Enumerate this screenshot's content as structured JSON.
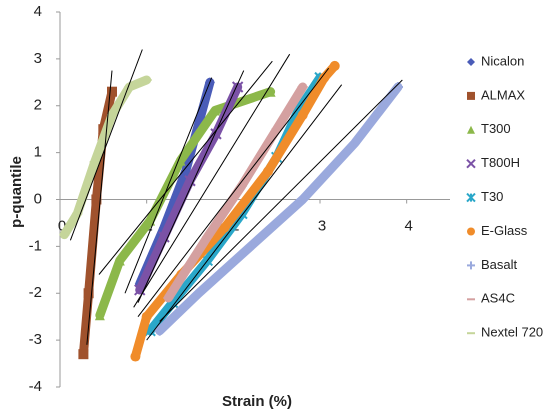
{
  "chart_data": {
    "type": "line",
    "x_label": "Strain (%)",
    "y_label": "p-quantile",
    "xlim": [
      0,
      4.5
    ],
    "ylim": [
      -4,
      4
    ],
    "xticks": [
      0,
      1,
      2,
      3,
      4
    ],
    "yticks": [
      -4,
      -3,
      -2,
      -1,
      0,
      1,
      2,
      3,
      4
    ],
    "series": [
      {
        "name": "Nicalon",
        "color": "#4a5cb8",
        "marker": "diamond",
        "x": [
          0.92,
          1.2,
          1.45,
          1.73
        ],
        "values": [
          -1.8,
          -0.6,
          0.6,
          2.5
        ]
      },
      {
        "name": "ALMAX",
        "color": "#a0522d",
        "marker": "square",
        "x": [
          0.27,
          0.33,
          0.42,
          0.5,
          0.6
        ],
        "values": [
          -3.3,
          -2,
          0,
          1.5,
          2.3
        ]
      },
      {
        "name": "T300",
        "color": "#8cb84a",
        "marker": "triangle",
        "x": [
          0.46,
          0.69,
          1.04,
          1.39,
          1.79,
          2.43
        ],
        "values": [
          -2.47,
          -1.3,
          -0.45,
          0.83,
          1.9,
          2.3
        ]
      },
      {
        "name": "T800H",
        "color": "#7b52a6",
        "marker": "x",
        "x": [
          0.92,
          1.2,
          1.5,
          1.8,
          2.05
        ],
        "values": [
          -1.93,
          -0.8,
          0.4,
          1.4,
          2.4
        ]
      },
      {
        "name": "T30",
        "color": "#2aa7c9",
        "marker": "asterisk",
        "x": [
          1.04,
          1.3,
          1.7,
          2.1,
          2.5,
          2.75,
          3.0
        ],
        "values": [
          -2.8,
          -2.2,
          -1.3,
          -0.3,
          0.9,
          1.9,
          2.6
        ]
      },
      {
        "name": "E-Glass",
        "color": "#f08c2a",
        "marker": "circle",
        "x": [
          0.87,
          1.0,
          1.4,
          1.9,
          2.4,
          2.8,
          3.05,
          3.17
        ],
        "values": [
          -3.35,
          -2.5,
          -1.6,
          -0.6,
          0.6,
          1.8,
          2.6,
          2.85
        ]
      },
      {
        "name": "Basalt",
        "color": "#9aa9dd",
        "marker": "plus",
        "x": [
          1.15,
          1.6,
          2.2,
          2.8,
          3.4,
          3.9
        ],
        "values": [
          -2.8,
          -2.0,
          -1.0,
          0,
          1.2,
          2.4
        ]
      },
      {
        "name": "AS4C",
        "color": "#d4a0a0",
        "marker": "dash",
        "x": [
          1.25,
          1.7,
          2.1,
          2.5,
          2.8
        ],
        "values": [
          -2.1,
          -0.8,
          0.3,
          1.5,
          2.4
        ]
      },
      {
        "name": "Nextel 720",
        "color": "#c5d59a",
        "marker": "dash",
        "x": [
          0.05,
          0.2,
          0.4,
          0.6,
          0.8,
          1.0
        ],
        "values": [
          -0.75,
          -0.3,
          0.8,
          1.8,
          2.4,
          2.55
        ]
      }
    ],
    "trend_lines": [
      {
        "x": [
          0.12,
          0.95
        ],
        "values": [
          -0.87,
          3.2
        ]
      },
      {
        "x": [
          0.31,
          0.6
        ],
        "values": [
          -3.1,
          2.75
        ]
      },
      {
        "x": [
          0.45,
          2.45
        ],
        "values": [
          -1.6,
          2.95
        ]
      },
      {
        "x": [
          0.75,
          1.75
        ],
        "values": [
          -2.0,
          2.6
        ]
      },
      {
        "x": [
          0.9,
          2.12
        ],
        "values": [
          -2.2,
          2.75
        ]
      },
      {
        "x": [
          0.85,
          2.65
        ],
        "values": [
          -2.3,
          3.1
        ]
      },
      {
        "x": [
          0.9,
          3.1
        ],
        "values": [
          -2.5,
          2.8
        ]
      },
      {
        "x": [
          1.0,
          3.25
        ],
        "values": [
          -3.0,
          2.45
        ]
      },
      {
        "x": [
          1.15,
          3.95
        ],
        "values": [
          -2.6,
          2.55
        ]
      }
    ]
  }
}
